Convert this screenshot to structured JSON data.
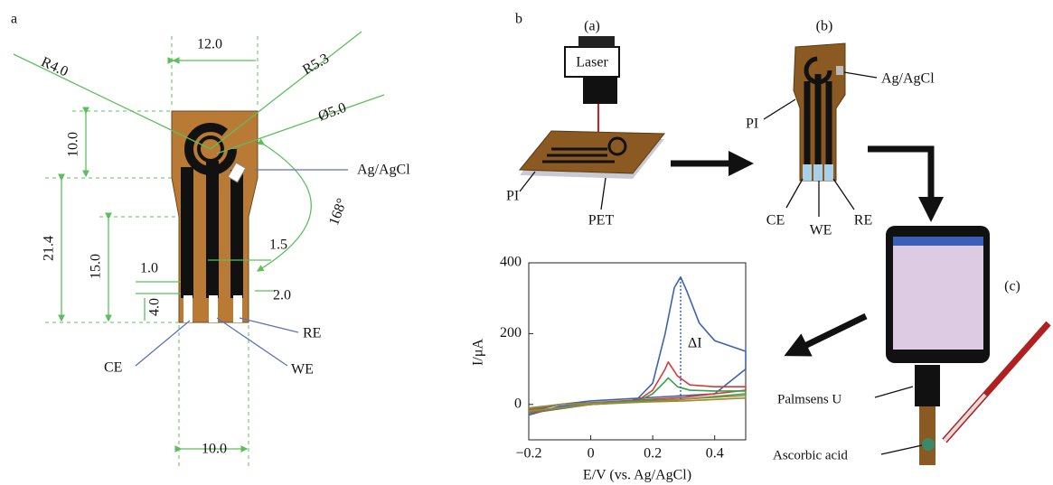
{
  "panel_a": {
    "label": "a",
    "dimensions": {
      "top_width": "12.0",
      "radius_outer": "R4.0",
      "radius_inner": "R5.3",
      "diameter": "Ø5.0",
      "head_height": "10.0",
      "body_height": "21.4",
      "track_length": "15.0",
      "track_width": "1.0",
      "pad_length": "4.0",
      "track_gap": "1.5",
      "pad_gap": "2.0",
      "angle": "168°",
      "bottom_width": "10.0"
    },
    "labels": {
      "reference": "Ag/AgCl",
      "re": "RE",
      "ce": "CE",
      "we": "WE"
    }
  },
  "panel_b": {
    "label": "b",
    "step_a": {
      "label": "(a)",
      "laser": "Laser",
      "pi": "PI",
      "pet": "PET"
    },
    "step_b": {
      "label": "(b)",
      "reference": "Ag/AgCl",
      "pi": "PI",
      "ce": "CE",
      "we": "WE",
      "re": "RE"
    },
    "step_c": {
      "label": "(c)",
      "device": "Palmsens U",
      "sample": "Ascorbic acid"
    }
  },
  "chart_data": {
    "type": "line",
    "x_label": "E/V (vs. Ag/AgCl)",
    "y_label": "I/μA",
    "xlim": [
      -0.2,
      0.5
    ],
    "ylim": [
      -100,
      400
    ],
    "xticks": [
      {
        "value": -0.2,
        "label": "−0.2"
      },
      0,
      0.2,
      0.4
    ],
    "yticks": [
      0,
      200,
      400
    ],
    "annotation": "ΔI",
    "peak_marker": {
      "x": 0.29,
      "y": [
        15,
        360
      ]
    },
    "series": [
      {
        "color": "#3d62b3",
        "x": [
          -0.2,
          -0.1,
          0,
          0.1,
          0.15,
          0.2,
          0.24,
          0.27,
          0.29,
          0.31,
          0.35,
          0.4,
          0.5,
          0.5,
          0.4,
          0.2,
          0.1,
          0,
          -0.1,
          -0.2
        ],
        "values": [
          -30,
          -5,
          0,
          5,
          15,
          60,
          200,
          330,
          360,
          320,
          230,
          180,
          150,
          100,
          30,
          20,
          15,
          10,
          0,
          -20
        ]
      },
      {
        "color": "#d83a3a",
        "x": [
          -0.2,
          0,
          0.15,
          0.2,
          0.24,
          0.25,
          0.28,
          0.32,
          0.4,
          0.5,
          0.5,
          0.3,
          0.1,
          -0.1,
          -0.2
        ],
        "values": [
          -25,
          0,
          10,
          40,
          100,
          120,
          80,
          55,
          50,
          50,
          40,
          20,
          10,
          0,
          -15
        ]
      },
      {
        "color": "#3aa04a",
        "x": [
          -0.2,
          0,
          0.15,
          0.2,
          0.24,
          0.25,
          0.28,
          0.32,
          0.4,
          0.5,
          0.5,
          0.3,
          0.1,
          -0.1,
          -0.2
        ],
        "values": [
          -22,
          0,
          8,
          30,
          65,
          75,
          50,
          40,
          38,
          38,
          30,
          15,
          8,
          0,
          -12
        ]
      },
      {
        "color": "#9a8a3a",
        "x": [
          -0.2,
          0,
          0.2,
          0.3,
          0.4,
          0.5,
          0.5,
          0.3,
          0.1,
          -0.1,
          -0.2
        ],
        "values": [
          -18,
          0,
          8,
          15,
          20,
          25,
          18,
          10,
          5,
          0,
          -10
        ]
      }
    ]
  }
}
